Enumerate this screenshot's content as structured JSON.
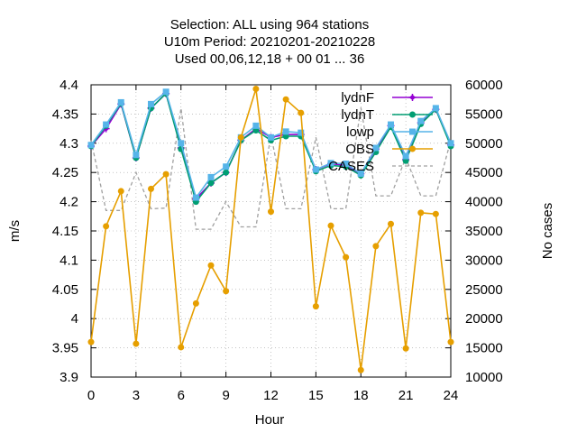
{
  "chart_data": {
    "type": "line",
    "title_lines": [
      "Selection: ALL using   964 stations",
      "U10m   Period: 20210201-20210228",
      "Used  00,06,12,18 + 00 01 ... 36"
    ],
    "xlabel": "Hour",
    "ylabel": "m/s",
    "y2label": "No cases",
    "xlim": [
      0,
      24
    ],
    "ylim": [
      3.9,
      4.4
    ],
    "y2lim": [
      10000,
      60000
    ],
    "xticks": [
      0,
      3,
      6,
      9,
      12,
      15,
      18,
      21,
      24
    ],
    "yticks": [
      3.9,
      3.95,
      4,
      4.05,
      4.1,
      4.15,
      4.2,
      4.25,
      4.3,
      4.35,
      4.4
    ],
    "ytick_labels": [
      "3.9",
      "3.95",
      "4",
      "4.05",
      "4.1",
      "4.15",
      "4.2",
      "4.25",
      "4.3",
      "4.35",
      "4.4"
    ],
    "y2ticks": [
      10000,
      15000,
      20000,
      25000,
      30000,
      35000,
      40000,
      45000,
      50000,
      55000,
      60000
    ],
    "grid": true,
    "legend_position": "top-right",
    "x": [
      0,
      1,
      2,
      3,
      4,
      5,
      6,
      7,
      8,
      9,
      10,
      11,
      12,
      13,
      14,
      15,
      16,
      17,
      18,
      19,
      20,
      21,
      22,
      23,
      24
    ],
    "series": [
      {
        "name": "lydnF",
        "axis": "y1",
        "color": "#9400d3",
        "marker": "plus",
        "values": [
          4.295,
          4.325,
          4.367,
          4.275,
          4.36,
          4.385,
          4.292,
          4.205,
          4.232,
          4.25,
          4.305,
          4.325,
          4.31,
          4.315,
          4.315,
          4.255,
          4.265,
          4.262,
          4.248,
          4.29,
          4.33,
          4.272,
          4.335,
          4.358,
          4.297
        ]
      },
      {
        "name": "lydnT",
        "axis": "y1",
        "color": "#009e73",
        "marker": "circle",
        "values": [
          4.295,
          4.33,
          4.368,
          4.275,
          4.36,
          4.385,
          4.29,
          4.2,
          4.232,
          4.25,
          4.305,
          4.322,
          4.305,
          4.312,
          4.312,
          4.252,
          4.262,
          4.26,
          4.245,
          4.285,
          4.328,
          4.27,
          4.333,
          4.358,
          4.295
        ]
      },
      {
        "name": "lowp",
        "axis": "y1",
        "color": "#56b4e9",
        "marker": "square",
        "values": [
          4.297,
          4.332,
          4.37,
          4.28,
          4.367,
          4.388,
          4.3,
          4.207,
          4.242,
          4.26,
          4.31,
          4.33,
          4.31,
          4.32,
          4.318,
          4.255,
          4.266,
          4.265,
          4.248,
          4.292,
          4.332,
          4.278,
          4.338,
          4.36,
          4.3
        ]
      },
      {
        "name": "OBS",
        "axis": "y1",
        "color": "#e69f00",
        "marker": "circle",
        "values": [
          3.96,
          4.158,
          4.218,
          3.957,
          4.222,
          4.247,
          3.951,
          4.026,
          4.091,
          4.047,
          4.31,
          4.393,
          4.183,
          4.375,
          4.352,
          4.021,
          4.159,
          4.105,
          3.912,
          4.124,
          4.162,
          3.949,
          4.181,
          4.179,
          3.96
        ]
      },
      {
        "name": "CASES",
        "axis": "y2",
        "color": "#a0a0a0",
        "dashed": true,
        "values": [
          50500,
          38500,
          38500,
          45000,
          38800,
          38900,
          56000,
          35300,
          35300,
          40000,
          35700,
          35700,
          51400,
          38800,
          38800,
          51000,
          38800,
          38800,
          56100,
          41000,
          41000,
          47500,
          41000,
          41000,
          50500
        ]
      }
    ]
  }
}
